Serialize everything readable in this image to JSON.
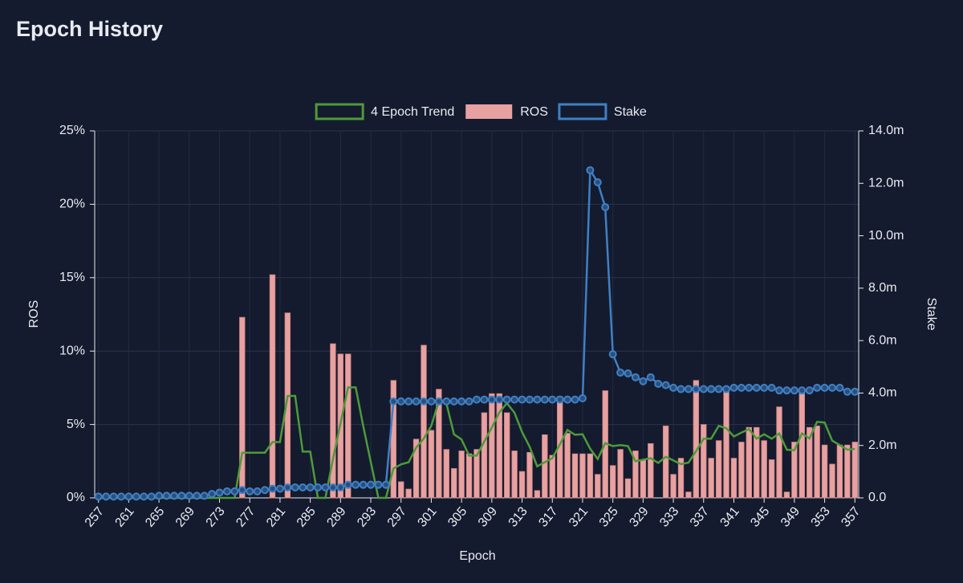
{
  "chart_data": {
    "type": "bar-line",
    "title": "Epoch History",
    "x_label": "Epoch",
    "y_label": "ROS",
    "y2_label": "Stake",
    "categories": [
      "257",
      null,
      null,
      null,
      "261",
      null,
      null,
      null,
      "265",
      null,
      null,
      null,
      "269",
      null,
      null,
      null,
      "273",
      null,
      null,
      null,
      "277",
      null,
      null,
      null,
      "281",
      null,
      null,
      null,
      "285",
      null,
      null,
      null,
      "289",
      null,
      null,
      null,
      "293",
      null,
      null,
      null,
      "297",
      null,
      null,
      null,
      "301",
      null,
      null,
      null,
      "305",
      null,
      null,
      null,
      "309",
      null,
      null,
      null,
      "313",
      null,
      null,
      null,
      "317",
      null,
      null,
      null,
      "321",
      null,
      null,
      null,
      "325",
      null,
      null,
      null,
      "329",
      null,
      null,
      null,
      "333",
      null,
      null,
      null,
      "337",
      null,
      null,
      null,
      "341",
      null,
      null,
      null,
      "345",
      null,
      null,
      null,
      "349",
      null,
      null,
      null,
      "353",
      null,
      null,
      null,
      "357"
    ],
    "series": [
      {
        "name": "4 Epoch Trend",
        "type": "line",
        "color": "#4e9a3a",
        "values": [
          0,
          0,
          0,
          0,
          0,
          0,
          0,
          0,
          0,
          0,
          0,
          0,
          0,
          0,
          0,
          0,
          0,
          0,
          0,
          3.08,
          3.08,
          3.08,
          3.08,
          3.8,
          3.8,
          6.95,
          6.95,
          3.15,
          3.15,
          0,
          0,
          2.63,
          5.08,
          7.53,
          7.53,
          4.9,
          2.45,
          0,
          0,
          2.0,
          2.28,
          2.43,
          3.43,
          4.03,
          4.9,
          6.6,
          6.43,
          4.33,
          3.98,
          2.88,
          2.88,
          3.83,
          4.8,
          5.83,
          6.45,
          5.8,
          4.48,
          3.48,
          2.15,
          2.43,
          2.7,
          3.65,
          4.63,
          4.3,
          4.33,
          3.35,
          2.65,
          3.73,
          3.53,
          3.6,
          3.53,
          2.5,
          2.6,
          2.7,
          2.38,
          2.8,
          2.55,
          2.3,
          2.4,
          3.18,
          4.03,
          4.03,
          4.9,
          4.75,
          4.18,
          4.45,
          4.68,
          4.03,
          4.33,
          4.03,
          4.38,
          3.28,
          3.25,
          4.4,
          4.05,
          5.18,
          5.13,
          3.9,
          3.6,
          3.28,
          3.33
        ]
      },
      {
        "name": "ROS",
        "type": "bar",
        "color": "#e8a1a1",
        "values": [
          0,
          0,
          0,
          0,
          0,
          0,
          0,
          0,
          0,
          0,
          0,
          0,
          0,
          0,
          0,
          0,
          0,
          0,
          0,
          12.3,
          0,
          0,
          0,
          15.2,
          0,
          12.6,
          0,
          0,
          0,
          0,
          0,
          10.5,
          9.8,
          9.8,
          0,
          0,
          0,
          0,
          0,
          8.0,
          1.1,
          0.6,
          4.0,
          10.4,
          4.6,
          7.4,
          3.3,
          2.0,
          3.2,
          3.0,
          3.3,
          5.8,
          7.1,
          7.1,
          5.8,
          3.2,
          1.8,
          3.1,
          0.5,
          4.3,
          2.9,
          6.9,
          4.4,
          3.0,
          3.0,
          3.0,
          1.6,
          7.3,
          2.2,
          3.3,
          1.3,
          3.2,
          2.6,
          3.7,
          0,
          4.9,
          1.6,
          2.7,
          0.4,
          8.0,
          5.0,
          2.7,
          3.9,
          7.4,
          2.7,
          3.8,
          4.8,
          4.8,
          3.9,
          2.6,
          6.2,
          0.4,
          3.8,
          7.2,
          4.8,
          4.9,
          3.6,
          2.3,
          3.6,
          3.6,
          3.8
        ]
      },
      {
        "name": "Stake",
        "type": "line",
        "axis": "y2",
        "color": "#3f80c4",
        "values": [
          0.05,
          0.05,
          0.05,
          0.05,
          0.05,
          0.05,
          0.05,
          0.05,
          0.08,
          0.08,
          0.08,
          0.08,
          0.08,
          0.08,
          0.08,
          0.15,
          0.2,
          0.25,
          0.25,
          0.3,
          0.25,
          0.25,
          0.3,
          0.35,
          0.35,
          0.4,
          0.4,
          0.4,
          0.4,
          0.4,
          0.4,
          0.4,
          0.4,
          0.5,
          0.5,
          0.5,
          0.5,
          0.5,
          0.5,
          3.68,
          3.68,
          3.68,
          3.68,
          3.68,
          3.68,
          3.68,
          3.68,
          3.68,
          3.68,
          3.68,
          3.75,
          3.75,
          3.75,
          3.75,
          3.75,
          3.75,
          3.75,
          3.75,
          3.75,
          3.75,
          3.75,
          3.75,
          3.75,
          3.75,
          3.8,
          12.5,
          12.04,
          11.09,
          5.48,
          4.78,
          4.75,
          4.6,
          4.45,
          4.6,
          4.35,
          4.3,
          4.2,
          4.15,
          4.15,
          4.15,
          4.15,
          4.15,
          4.15,
          4.15,
          4.2,
          4.2,
          4.2,
          4.2,
          4.2,
          4.2,
          4.1,
          4.1,
          4.1,
          4.1,
          4.1,
          4.2,
          4.2,
          4.2,
          4.2,
          4.05,
          4.05
        ]
      }
    ],
    "ylim": [
      0,
      25
    ],
    "yticks": [
      {
        "value": 0,
        "label": "0%"
      },
      {
        "value": 5,
        "label": "5%"
      },
      {
        "value": 10,
        "label": "10%"
      },
      {
        "value": 15,
        "label": "15%"
      },
      {
        "value": 20,
        "label": "20%"
      },
      {
        "value": 25,
        "label": "25%"
      }
    ],
    "y2lim": [
      0,
      14
    ],
    "y2ticks": [
      {
        "value": 0,
        "label": "0.0"
      },
      {
        "value": 2,
        "label": "2.0m"
      },
      {
        "value": 4,
        "label": "4.0m"
      },
      {
        "value": 6,
        "label": "6.0m"
      },
      {
        "value": 8,
        "label": "8.0m"
      },
      {
        "value": 10,
        "label": "10.0m"
      },
      {
        "value": 12,
        "label": "12.0m"
      },
      {
        "value": 14,
        "label": "14.0m"
      }
    ],
    "grid": true,
    "legend": "top"
  }
}
